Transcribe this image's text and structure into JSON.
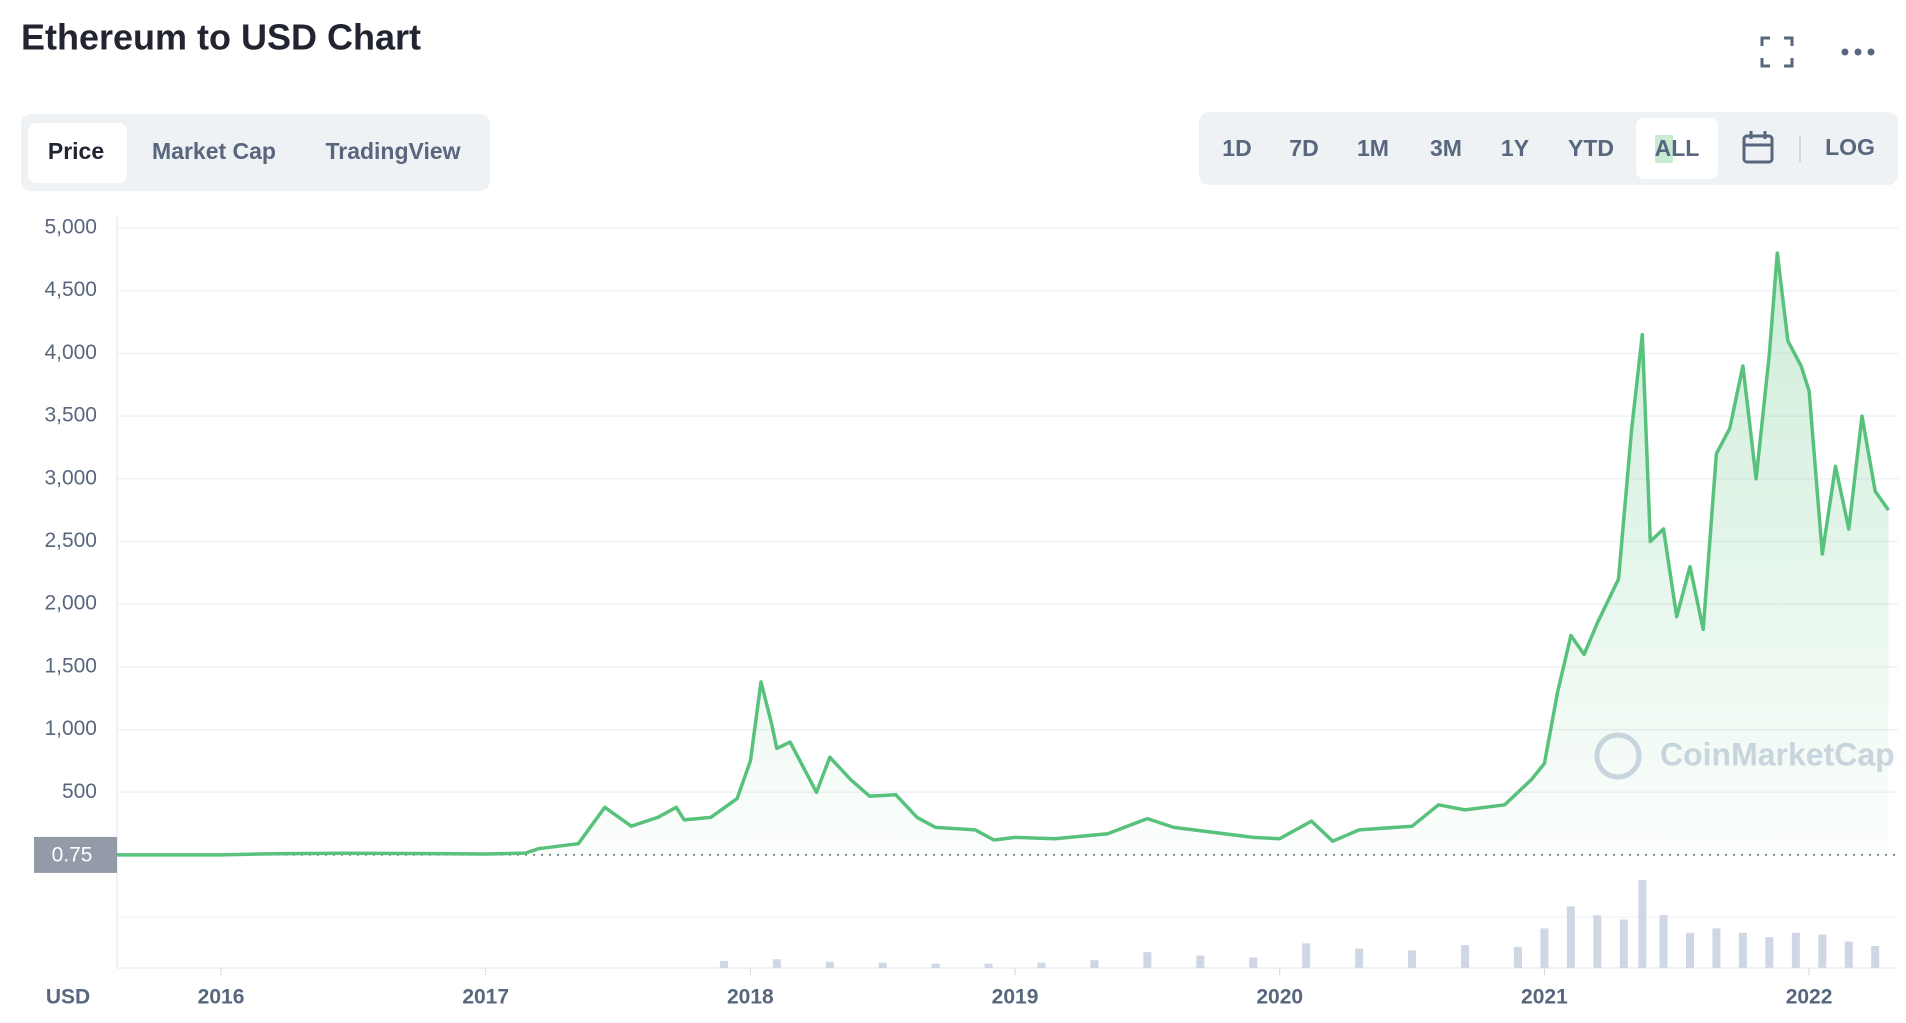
{
  "chart_data": {
    "type": "line",
    "title": "Ethereum to USD Chart",
    "tabs": [
      "Price",
      "Market Cap",
      "TradingView"
    ],
    "ranges": [
      "1D",
      "7D",
      "1M",
      "3M",
      "1Y",
      "YTD",
      "ALL"
    ],
    "scale_button": "LOG",
    "currency": "USD",
    "watermark": "CoinMarketCap",
    "price_marker": 0.75,
    "x": [
      2015.607,
      2016.0,
      2016.2,
      2016.45,
      2016.8,
      2017.0,
      2017.15,
      2017.2,
      2017.35,
      2017.45,
      2017.55,
      2017.65,
      2017.72,
      2017.75,
      2017.85,
      2017.95,
      2018.0,
      2018.04,
      2018.08,
      2018.1,
      2018.15,
      2018.2,
      2018.25,
      2018.3,
      2018.38,
      2018.45,
      2018.55,
      2018.63,
      2018.7,
      2018.85,
      2018.92,
      2019.0,
      2019.15,
      2019.35,
      2019.5,
      2019.6,
      2019.75,
      2019.9,
      2020.0,
      2020.12,
      2020.2,
      2020.3,
      2020.5,
      2020.6,
      2020.7,
      2020.85,
      2020.95,
      2021.0,
      2021.05,
      2021.1,
      2021.15,
      2021.2,
      2021.28,
      2021.33,
      2021.37,
      2021.4,
      2021.45,
      2021.5,
      2021.55,
      2021.6,
      2021.65,
      2021.7,
      2021.75,
      2021.8,
      2021.85,
      2021.88,
      2021.92,
      2021.97,
      2022.0,
      2022.05,
      2022.1,
      2022.15,
      2022.2,
      2022.25,
      2022.3
    ],
    "series": [
      {
        "color": "#58c27d",
        "values": [
          1,
          1,
          10,
          14,
          11,
          8,
          15,
          50,
          90,
          380,
          230,
          300,
          380,
          280,
          300,
          450,
          750,
          1380,
          1050,
          850,
          900,
          700,
          500,
          780,
          600,
          470,
          480,
          300,
          220,
          200,
          120,
          140,
          130,
          170,
          290,
          220,
          180,
          140,
          130,
          270,
          110,
          200,
          230,
          400,
          360,
          400,
          600,
          730,
          1300,
          1750,
          1600,
          1850,
          2200,
          3400,
          4150,
          2500,
          2600,
          1900,
          2300,
          1800,
          3200,
          3400,
          3900,
          3000,
          4000,
          4800,
          4100,
          3900,
          3700,
          2400,
          3100,
          2600,
          3500,
          2900,
          2750
        ]
      }
    ],
    "volume": {
      "color": "#cfd6e4",
      "x": [
        2017.9,
        2018.1,
        2018.3,
        2018.5,
        2018.7,
        2018.9,
        2019.1,
        2019.3,
        2019.5,
        2019.7,
        2019.9,
        2020.1,
        2020.3,
        2020.5,
        2020.7,
        2020.9,
        2021.0,
        2021.1,
        2021.2,
        2021.3,
        2021.37,
        2021.45,
        2021.55,
        2021.65,
        2021.75,
        2021.85,
        2021.95,
        2022.05,
        2022.15,
        2022.25
      ],
      "values": [
        8,
        10,
        7,
        6,
        5,
        5,
        6,
        9,
        18,
        14,
        12,
        28,
        22,
        20,
        26,
        24,
        45,
        70,
        60,
        55,
        100,
        60,
        40,
        45,
        40,
        35,
        40,
        38,
        30,
        25
      ],
      "ylim": [
        0,
        100
      ]
    },
    "xlim": [
      2015.607,
      2022.336
    ],
    "xticks": [
      2016,
      2017,
      2018,
      2019,
      2020,
      2021,
      2022
    ],
    "ylim": [
      0,
      5000
    ],
    "yticks": [
      500,
      {
        "value": 1000,
        "label": "1,000"
      },
      {
        "value": 1500,
        "label": "1,500"
      },
      {
        "value": 2000,
        "label": "2,000"
      },
      {
        "value": 2500,
        "label": "2,500"
      },
      {
        "value": 3000,
        "label": "3,000"
      },
      {
        "value": 3500,
        "label": "3,500"
      },
      {
        "value": 4000,
        "label": "4,000"
      },
      {
        "value": 4500,
        "label": "4,500"
      },
      {
        "value": 5000,
        "label": "5,000"
      }
    ],
    "grid": true
  }
}
